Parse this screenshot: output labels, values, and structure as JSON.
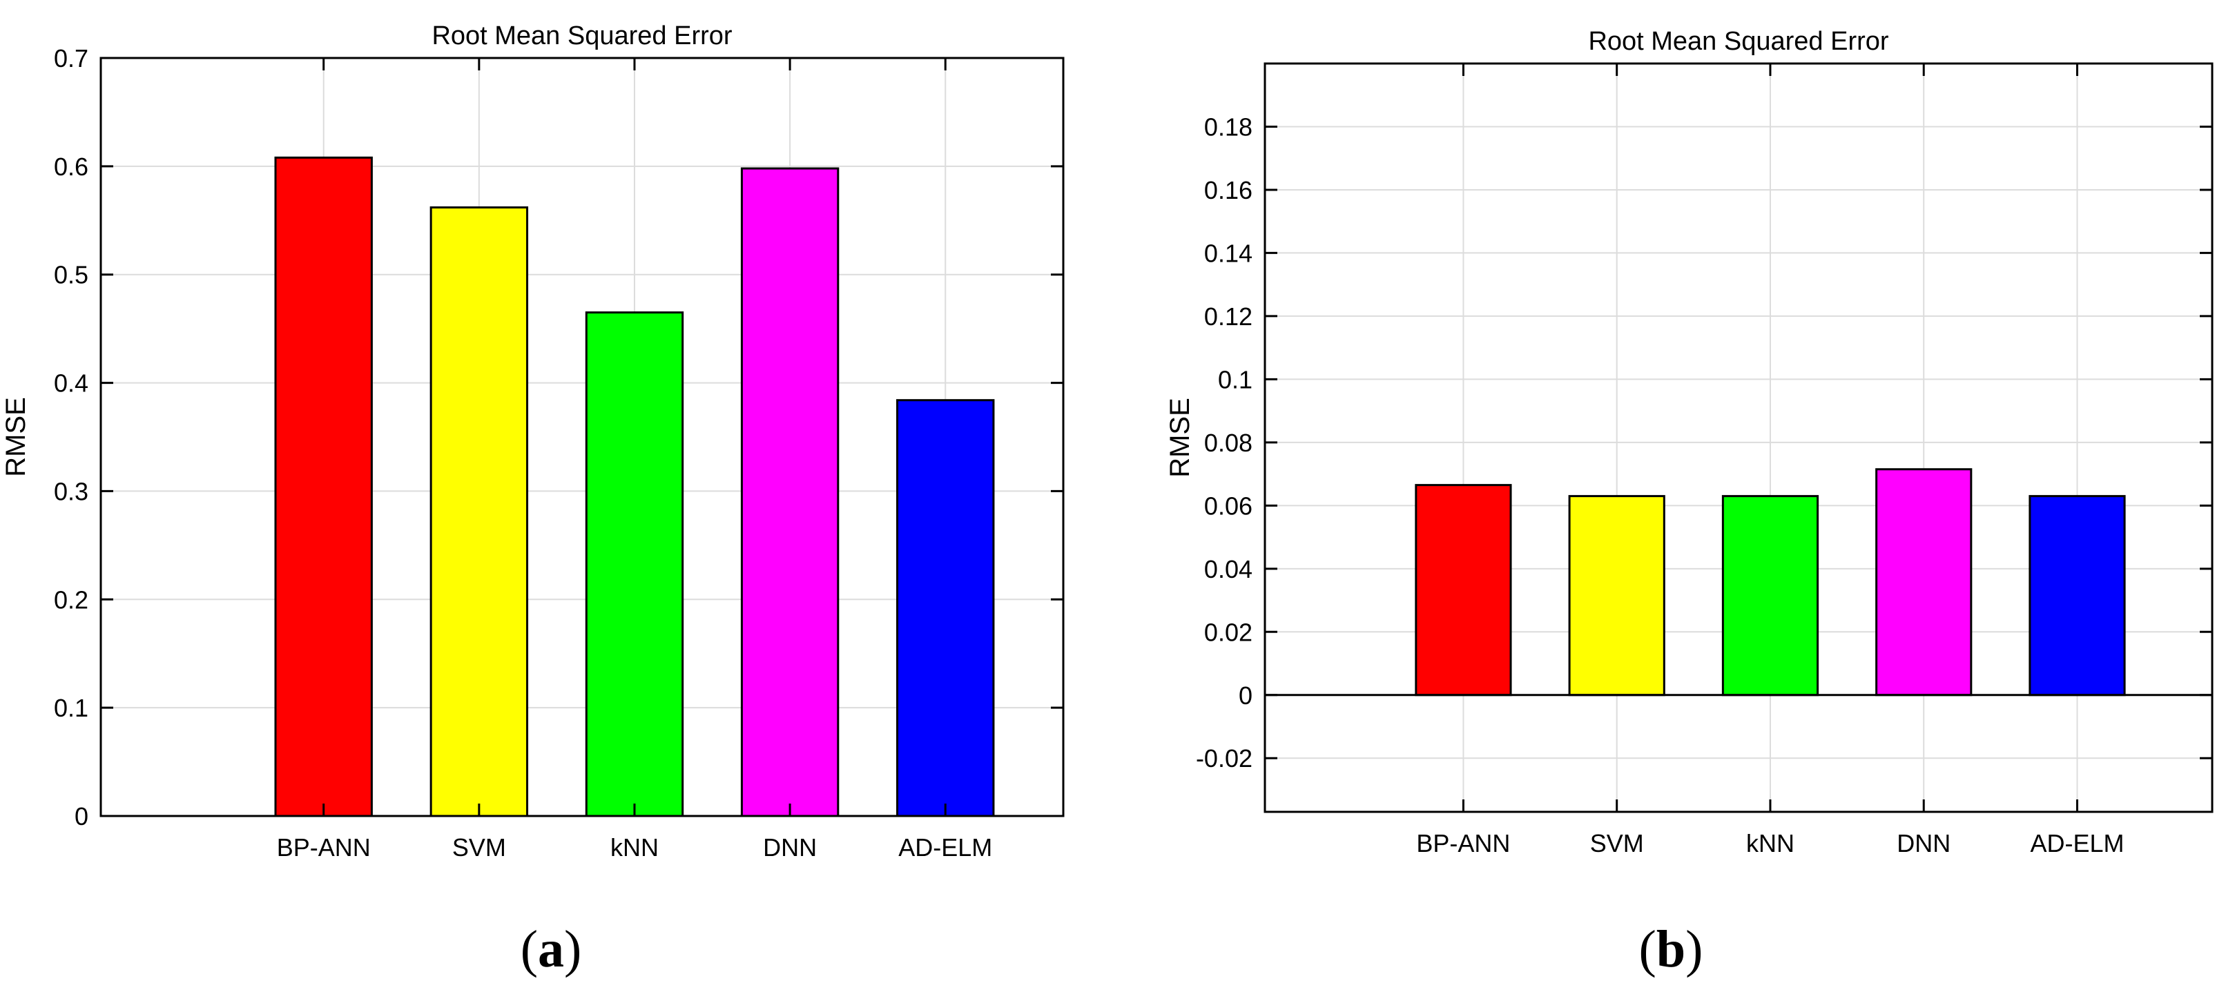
{
  "chart_data": [
    {
      "type": "bar",
      "title": "Root Mean Squared Error",
      "ylabel": "RMSE",
      "xlabel": "",
      "categories": [
        "BP-ANN",
        "SVM",
        "kNN",
        "DNN",
        "AD-ELM"
      ],
      "values": [
        0.608,
        0.562,
        0.465,
        0.598,
        0.384
      ],
      "ylim": [
        0,
        0.7
      ],
      "yticks": [
        0,
        0.1,
        0.2,
        0.3,
        0.4,
        0.5,
        0.6,
        0.7
      ],
      "ytick_labels": [
        "0",
        "0.1",
        "0.2",
        "0.3",
        "0.4",
        "0.5",
        "0.6",
        "0.7"
      ],
      "grid": true,
      "colors": [
        "#ff0000",
        "#ffff00",
        "#00ff00",
        "#ff00ff",
        "#0000ff"
      ],
      "caption": {
        "open": "(",
        "letter": "a",
        "close": ")"
      }
    },
    {
      "type": "bar",
      "title": "Root Mean Squared Error",
      "ylabel": "RMSE",
      "xlabel": "",
      "categories": [
        "BP-ANN",
        "SVM",
        "kNN",
        "DNN",
        "AD-ELM"
      ],
      "values": [
        0.0665,
        0.063,
        0.063,
        0.0715,
        0.063
      ],
      "ylim": [
        -0.037,
        0.2
      ],
      "yticks": [
        -0.02,
        0,
        0.02,
        0.04,
        0.06,
        0.08,
        0.1,
        0.12,
        0.14,
        0.16,
        0.18
      ],
      "ytick_labels": [
        "-0.02",
        "0",
        "0.02",
        "0.04",
        "0.06",
        "0.08",
        "0.1",
        "0.12",
        "0.14",
        "0.16",
        "0.18"
      ],
      "grid": true,
      "colors": [
        "#ff0000",
        "#ffff00",
        "#00ff00",
        "#ff00ff",
        "#0000ff"
      ],
      "caption": {
        "open": "(",
        "letter": "b",
        "close": ")"
      }
    }
  ]
}
